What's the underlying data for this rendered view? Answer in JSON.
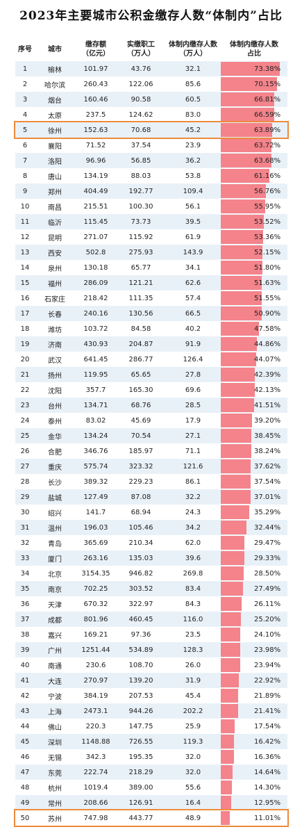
{
  "title": "2023年主要城市公积金缴存人数“体制内”占比",
  "colors": {
    "bar": "#f4838b",
    "highlight": "#ee8a3a",
    "row_tint": "#e9f1f8"
  },
  "highlighted_rows": [
    5,
    50
  ],
  "chart_data": {
    "type": "table",
    "columns": [
      "序号",
      "城市",
      "缴存额\n（亿元）",
      "实缴职工\n（万人）",
      "体制内缴存人数\n（万人）",
      "体制内缴存人数\n占比"
    ],
    "rows": [
      {
        "rank": "1",
        "city": "榆林",
        "amount": "101.97",
        "workers": "43.76",
        "gov": "32.1",
        "pct": "73.38%",
        "v": 73.38
      },
      {
        "rank": "2",
        "city": "哈尔滨",
        "amount": "260.43",
        "workers": "122.06",
        "gov": "85.6",
        "pct": "70.15%",
        "v": 70.15
      },
      {
        "rank": "3",
        "city": "烟台",
        "amount": "160.46",
        "workers": "90.58",
        "gov": "60.5",
        "pct": "66.81%",
        "v": 66.81
      },
      {
        "rank": "4",
        "city": "太原",
        "amount": "237.5",
        "workers": "124.62",
        "gov": "83.0",
        "pct": "66.59%",
        "v": 66.59
      },
      {
        "rank": "5",
        "city": "徐州",
        "amount": "152.63",
        "workers": "70.68",
        "gov": "45.2",
        "pct": "63.89%",
        "v": 63.89
      },
      {
        "rank": "6",
        "city": "襄阳",
        "amount": "71.52",
        "workers": "37.54",
        "gov": "23.9",
        "pct": "63.72%",
        "v": 63.72
      },
      {
        "rank": "7",
        "city": "洛阳",
        "amount": "96.96",
        "workers": "56.85",
        "gov": "36.2",
        "pct": "63.68%",
        "v": 63.68
      },
      {
        "rank": "8",
        "city": "唐山",
        "amount": "134.19",
        "workers": "88.03",
        "gov": "53.8",
        "pct": "61.16%",
        "v": 61.16
      },
      {
        "rank": "9",
        "city": "郑州",
        "amount": "404.49",
        "workers": "192.77",
        "gov": "109.4",
        "pct": "56.76%",
        "v": 56.76
      },
      {
        "rank": "10",
        "city": "南昌",
        "amount": "215.51",
        "workers": "100.30",
        "gov": "56.1",
        "pct": "55.95%",
        "v": 55.95
      },
      {
        "rank": "11",
        "city": "临沂",
        "amount": "115.45",
        "workers": "73.73",
        "gov": "39.5",
        "pct": "53.52%",
        "v": 53.52
      },
      {
        "rank": "12",
        "city": "昆明",
        "amount": "271.07",
        "workers": "115.92",
        "gov": "61.9",
        "pct": "53.36%",
        "v": 53.36
      },
      {
        "rank": "13",
        "city": "西安",
        "amount": "502.8",
        "workers": "275.93",
        "gov": "143.9",
        "pct": "52.15%",
        "v": 52.15
      },
      {
        "rank": "14",
        "city": "泉州",
        "amount": "130.18",
        "workers": "65.77",
        "gov": "34.1",
        "pct": "51.80%",
        "v": 51.8
      },
      {
        "rank": "15",
        "city": "福州",
        "amount": "286.09",
        "workers": "121.21",
        "gov": "62.6",
        "pct": "51.63%",
        "v": 51.63
      },
      {
        "rank": "16",
        "city": "石家庄",
        "amount": "218.42",
        "workers": "111.35",
        "gov": "57.4",
        "pct": "51.55%",
        "v": 51.55
      },
      {
        "rank": "17",
        "city": "长春",
        "amount": "240.16",
        "workers": "130.56",
        "gov": "66.5",
        "pct": "50.90%",
        "v": 50.9
      },
      {
        "rank": "18",
        "city": "潍坊",
        "amount": "103.72",
        "workers": "84.58",
        "gov": "40.2",
        "pct": "47.58%",
        "v": 47.58
      },
      {
        "rank": "19",
        "city": "济南",
        "amount": "430.93",
        "workers": "204.87",
        "gov": "91.9",
        "pct": "44.86%",
        "v": 44.86
      },
      {
        "rank": "20",
        "city": "武汉",
        "amount": "641.45",
        "workers": "286.77",
        "gov": "126.4",
        "pct": "44.07%",
        "v": 44.07
      },
      {
        "rank": "21",
        "city": "扬州",
        "amount": "119.95",
        "workers": "65.65",
        "gov": "27.8",
        "pct": "42.39%",
        "v": 42.39
      },
      {
        "rank": "22",
        "city": "沈阳",
        "amount": "357.7",
        "workers": "165.30",
        "gov": "69.6",
        "pct": "42.13%",
        "v": 42.13
      },
      {
        "rank": "23",
        "city": "台州",
        "amount": "134.71",
        "workers": "68.76",
        "gov": "28.5",
        "pct": "41.51%",
        "v": 41.51
      },
      {
        "rank": "24",
        "city": "泰州",
        "amount": "83.02",
        "workers": "45.69",
        "gov": "17.9",
        "pct": "39.20%",
        "v": 39.2
      },
      {
        "rank": "25",
        "city": "金华",
        "amount": "134.24",
        "workers": "70.54",
        "gov": "27.1",
        "pct": "38.45%",
        "v": 38.45
      },
      {
        "rank": "26",
        "city": "合肥",
        "amount": "346.76",
        "workers": "185.97",
        "gov": "71.1",
        "pct": "38.24%",
        "v": 38.24
      },
      {
        "rank": "27",
        "city": "重庆",
        "amount": "575.74",
        "workers": "323.32",
        "gov": "121.6",
        "pct": "37.62%",
        "v": 37.62
      },
      {
        "rank": "28",
        "city": "长沙",
        "amount": "389.32",
        "workers": "229.23",
        "gov": "86.1",
        "pct": "37.54%",
        "v": 37.54
      },
      {
        "rank": "29",
        "city": "盐城",
        "amount": "127.49",
        "workers": "87.08",
        "gov": "32.2",
        "pct": "37.01%",
        "v": 37.01
      },
      {
        "rank": "30",
        "city": "绍兴",
        "amount": "141.7",
        "workers": "68.94",
        "gov": "24.3",
        "pct": "35.29%",
        "v": 35.29
      },
      {
        "rank": "31",
        "city": "温州",
        "amount": "196.03",
        "workers": "105.46",
        "gov": "34.2",
        "pct": "32.44%",
        "v": 32.44
      },
      {
        "rank": "32",
        "city": "青岛",
        "amount": "365.69",
        "workers": "210.34",
        "gov": "62.0",
        "pct": "29.47%",
        "v": 29.47
      },
      {
        "rank": "33",
        "city": "厦门",
        "amount": "263.16",
        "workers": "135.03",
        "gov": "39.6",
        "pct": "29.33%",
        "v": 29.33
      },
      {
        "rank": "34",
        "city": "北京",
        "amount": "3154.35",
        "workers": "946.82",
        "gov": "269.8",
        "pct": "28.50%",
        "v": 28.5
      },
      {
        "rank": "35",
        "city": "南京",
        "amount": "702.25",
        "workers": "303.52",
        "gov": "83.4",
        "pct": "27.49%",
        "v": 27.49
      },
      {
        "rank": "36",
        "city": "天津",
        "amount": "670.32",
        "workers": "322.97",
        "gov": "84.3",
        "pct": "26.11%",
        "v": 26.11
      },
      {
        "rank": "37",
        "city": "成都",
        "amount": "801.96",
        "workers": "460.45",
        "gov": "116.0",
        "pct": "25.20%",
        "v": 25.2
      },
      {
        "rank": "38",
        "city": "嘉兴",
        "amount": "169.21",
        "workers": "97.36",
        "gov": "23.5",
        "pct": "24.10%",
        "v": 24.1
      },
      {
        "rank": "39",
        "city": "广州",
        "amount": "1251.44",
        "workers": "534.89",
        "gov": "128.3",
        "pct": "23.98%",
        "v": 23.98
      },
      {
        "rank": "40",
        "city": "南通",
        "amount": "230.6",
        "workers": "108.70",
        "gov": "26.0",
        "pct": "23.94%",
        "v": 23.94
      },
      {
        "rank": "41",
        "city": "大连",
        "amount": "270.97",
        "workers": "139.20",
        "gov": "31.9",
        "pct": "22.92%",
        "v": 22.92
      },
      {
        "rank": "42",
        "city": "宁波",
        "amount": "384.19",
        "workers": "207.53",
        "gov": "45.4",
        "pct": "21.89%",
        "v": 21.89
      },
      {
        "rank": "43",
        "city": "上海",
        "amount": "2473.1",
        "workers": "944.26",
        "gov": "202.2",
        "pct": "21.41%",
        "v": 21.41
      },
      {
        "rank": "44",
        "city": "佛山",
        "amount": "220.3",
        "workers": "147.75",
        "gov": "25.9",
        "pct": "17.54%",
        "v": 17.54
      },
      {
        "rank": "45",
        "city": "深圳",
        "amount": "1148.88",
        "workers": "726.55",
        "gov": "119.3",
        "pct": "16.42%",
        "v": 16.42
      },
      {
        "rank": "46",
        "city": "无锡",
        "amount": "342.3",
        "workers": "195.35",
        "gov": "32.0",
        "pct": "16.36%",
        "v": 16.36
      },
      {
        "rank": "47",
        "city": "东莞",
        "amount": "222.74",
        "workers": "218.29",
        "gov": "32.0",
        "pct": "14.64%",
        "v": 14.64
      },
      {
        "rank": "48",
        "city": "杭州",
        "amount": "1019.4",
        "workers": "389.00",
        "gov": "55.6",
        "pct": "14.30%",
        "v": 14.3
      },
      {
        "rank": "49",
        "city": "常州",
        "amount": "208.66",
        "workers": "126.91",
        "gov": "16.4",
        "pct": "12.95%",
        "v": 12.95
      },
      {
        "rank": "50",
        "city": "苏州",
        "amount": "747.98",
        "workers": "443.77",
        "gov": "48.9",
        "pct": "11.01%",
        "v": 11.01
      }
    ]
  }
}
